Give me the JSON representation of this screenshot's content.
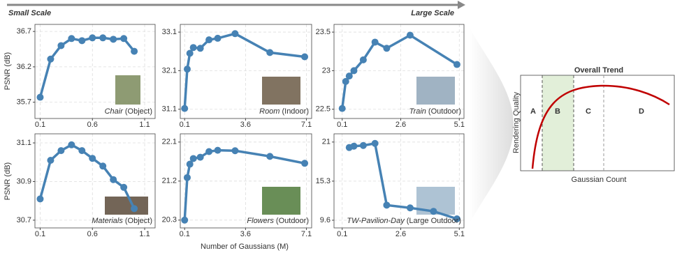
{
  "header": {
    "left": "Small Scale",
    "right": "Large Scale"
  },
  "axes": {
    "xlabel": "Number of Gaussians (M)",
    "ylabel": "PSNR (dB)"
  },
  "chart_data": [
    {
      "type": "line",
      "label": "Chair",
      "label_suffix": "(Object)",
      "color": "#4682b4",
      "grid": true,
      "x": [
        0.1,
        0.2,
        0.3,
        0.4,
        0.5,
        0.6,
        0.7,
        0.8,
        0.9,
        1.0
      ],
      "values": [
        35.77,
        36.31,
        36.5,
        36.6,
        36.57,
        36.61,
        36.61,
        36.59,
        36.6,
        36.42
      ],
      "xlim": [
        0.05,
        1.2
      ],
      "xticks": [
        0.1,
        0.6,
        1.1
      ],
      "ylim": [
        35.47,
        36.8
      ],
      "yticks": [
        35.7,
        36.2,
        36.7
      ]
    },
    {
      "type": "line",
      "label": "Room",
      "label_suffix": "(Indoor)",
      "color": "#4682b4",
      "grid": true,
      "x": [
        0.1,
        0.25,
        0.4,
        0.6,
        1.0,
        1.5,
        2.0,
        3.0,
        5.0,
        7.0
      ],
      "values": [
        31.12,
        32.14,
        32.55,
        32.7,
        32.68,
        32.9,
        32.94,
        33.06,
        32.57,
        32.46
      ],
      "xlim": [
        -0.15,
        7.4
      ],
      "xticks": [
        0.1,
        3.6,
        7.1
      ],
      "ylim": [
        30.86,
        33.3
      ],
      "yticks": [
        31.1,
        32.1,
        33.1
      ]
    },
    {
      "type": "line",
      "label": "Train",
      "label_suffix": "(Outdoor)",
      "color": "#4682b4",
      "grid": true,
      "x": [
        0.1,
        0.25,
        0.4,
        0.6,
        1.0,
        1.5,
        2.0,
        3.0,
        5.0
      ],
      "values": [
        22.51,
        22.86,
        22.93,
        23.0,
        23.14,
        23.37,
        23.29,
        23.46,
        23.08
      ],
      "xlim": [
        -0.25,
        5.3
      ],
      "xticks": [
        0.1,
        2.6,
        5.1
      ],
      "ylim": [
        22.38,
        23.6
      ],
      "yticks": [
        22.5,
        23,
        23.5
      ]
    },
    {
      "type": "line",
      "label": "Materials",
      "label_suffix": "(Object)",
      "color": "#4682b4",
      "grid": true,
      "x": [
        0.1,
        0.2,
        0.3,
        0.4,
        0.5,
        0.6,
        0.7,
        0.8,
        0.9,
        1.0
      ],
      "values": [
        30.81,
        31.01,
        31.06,
        31.09,
        31.06,
        31.02,
        30.98,
        30.91,
        30.87,
        30.76
      ],
      "xlim": [
        0.05,
        1.2
      ],
      "xticks": [
        0.1,
        0.6,
        1.1
      ],
      "ylim": [
        30.66,
        31.147
      ],
      "yticks": [
        30.7,
        30.9,
        31.1
      ]
    },
    {
      "type": "line",
      "label": "Flowers",
      "label_suffix": "(Outdoor)",
      "color": "#4682b4",
      "grid": true,
      "x": [
        0.1,
        0.25,
        0.4,
        0.6,
        1.0,
        1.5,
        2.0,
        3.0,
        5.0,
        7.0
      ],
      "values": [
        20.3,
        21.28,
        21.59,
        21.72,
        21.75,
        21.88,
        21.91,
        21.9,
        21.77,
        21.61
      ],
      "xlim": [
        -0.15,
        7.4
      ],
      "xticks": [
        0.1,
        3.6,
        7.1
      ],
      "ylim": [
        20.12,
        22.29
      ],
      "yticks": [
        20.3,
        21.2,
        22.1
      ]
    },
    {
      "type": "line",
      "label": "TW-Pavilion-Day",
      "label_suffix": "(Large Outdoor)",
      "color": "#4682b4",
      "grid": true,
      "x": [
        0.4,
        0.6,
        1.0,
        1.5,
        2.0,
        3.0,
        4.0,
        5.0
      ],
      "values": [
        20.2,
        20.4,
        20.5,
        20.8,
        11.8,
        11.4,
        10.9,
        9.8
      ],
      "xlim": [
        -0.25,
        5.3
      ],
      "xticks": [
        0.1,
        2.6,
        5.1
      ],
      "ylim": [
        8.48,
        22.2
      ],
      "yticks": [
        9.6,
        15.3,
        21
      ]
    }
  ],
  "trend": {
    "title": "Overall Trend",
    "xlabel": "Gaussian Count",
    "ylabel": "Rendering Quality",
    "regions": [
      "A",
      "B",
      "C",
      "D"
    ]
  }
}
